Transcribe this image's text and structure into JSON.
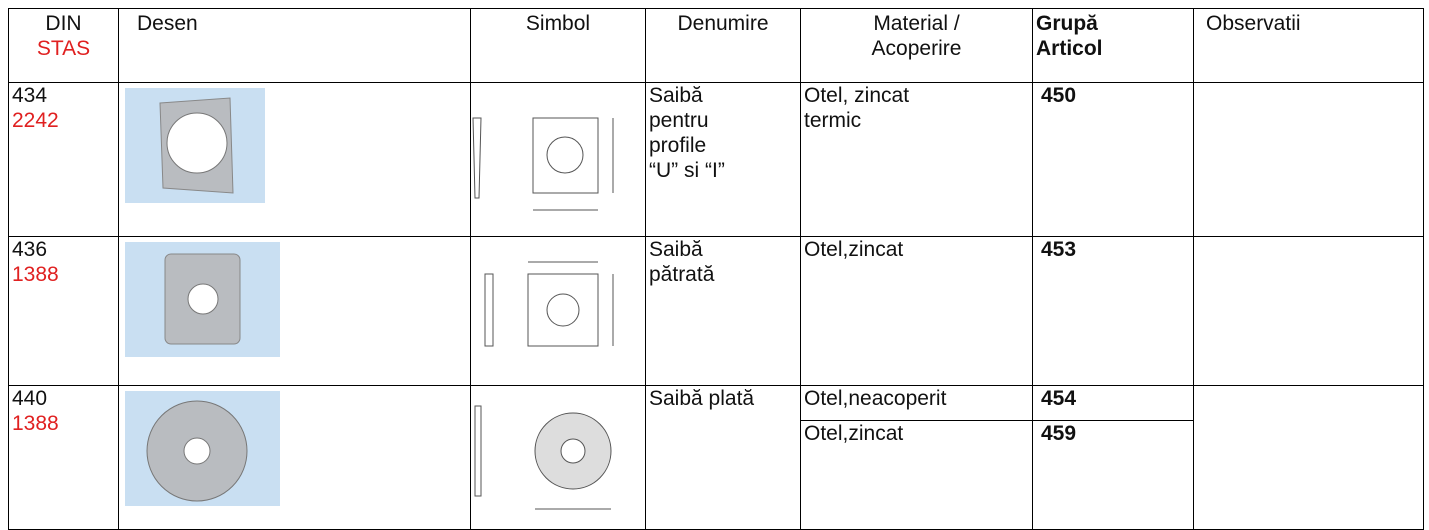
{
  "table": {
    "header": {
      "din": "DIN",
      "stas": "STAS",
      "desen": "Desen",
      "simbol": "Simbol",
      "denumire": "Denumire",
      "material": [
        "Material /",
        "Acoperire"
      ],
      "grupa": [
        "Grupă",
        "Articol"
      ],
      "observatii": "Observatii"
    },
    "rows": [
      {
        "din": "434",
        "stas": "2242",
        "denumire": [
          "Saibă",
          "pentru",
          "profile",
          "“U” si “I”"
        ],
        "items": [
          {
            "material": [
              "Otel, zincat",
              "termic"
            ],
            "grupa": "450"
          }
        ]
      },
      {
        "din": "436",
        "stas": "1388",
        "denumire": [
          "Saibă",
          "pătrată"
        ],
        "items": [
          {
            "material": [
              "Otel,zincat"
            ],
            "grupa": "453"
          }
        ]
      },
      {
        "din": "440",
        "stas": "1388",
        "denumire": [
          "Saibă plată"
        ],
        "items": [
          {
            "material": [
              "Otel,neacoperit"
            ],
            "grupa": "454"
          },
          {
            "material": [
              "Otel,zincat"
            ],
            "grupa": "459"
          }
        ]
      }
    ]
  }
}
